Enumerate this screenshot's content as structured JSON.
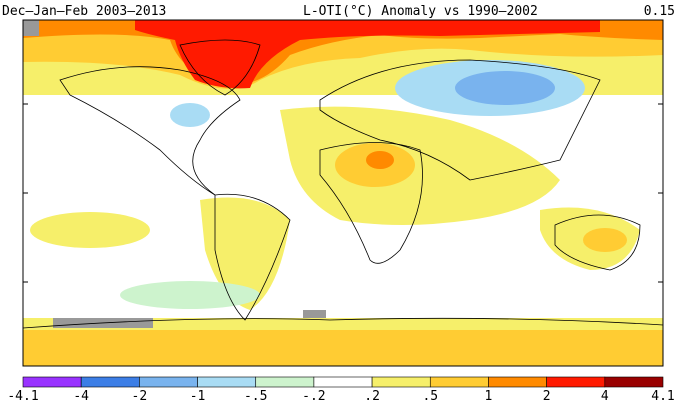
{
  "header": {
    "left": "Dec–Jan–Feb 2003–2013",
    "center": "L-OTI(°C) Anomaly vs 1990–2002",
    "right": "0.15"
  },
  "legend": {
    "labels": [
      "-4.1",
      "-4",
      "-2",
      "-1",
      "-.5",
      "-.2",
      ".2",
      ".5",
      "1",
      "2",
      "4",
      "4.1"
    ],
    "colors": [
      "#9933ff",
      "#3c7ee6",
      "#79b3ee",
      "#a9dcf4",
      "#cdf3cd",
      "#ffffff",
      "#f6ef6a",
      "#ffcc33",
      "#ff8a00",
      "#ff1a00",
      "#990000"
    ]
  }
}
